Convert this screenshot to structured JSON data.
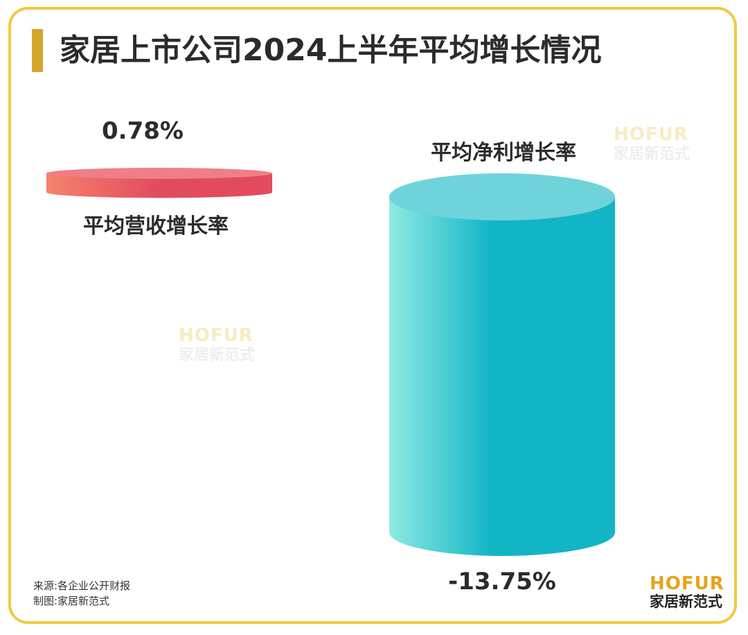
{
  "title": "家居上市公司2024上半年平均增长情况",
  "chart_data": {
    "type": "bar",
    "title": "家居上市公司2024上半年平均增长情况",
    "categories": [
      "平均营收增长率",
      "平均净利增长率"
    ],
    "values": [
      0.78,
      -13.75
    ],
    "value_labels": [
      "0.78%",
      "-13.75%"
    ],
    "colors": [
      "#e24b5e",
      "#12b5c6"
    ],
    "gradient_start": [
      "#f5826c",
      "#8eeae2"
    ],
    "grid": false
  },
  "watermarks": [
    {
      "en": "HOFUR",
      "cn": "家居新范式"
    },
    {
      "en": "HOFUR",
      "cn": "家居新范式"
    }
  ],
  "source": {
    "line1": "来源:各企业公开财报",
    "line2": "制图:家居新范式"
  },
  "logo": {
    "en": "HOFUR",
    "cn": "家居新范式"
  }
}
